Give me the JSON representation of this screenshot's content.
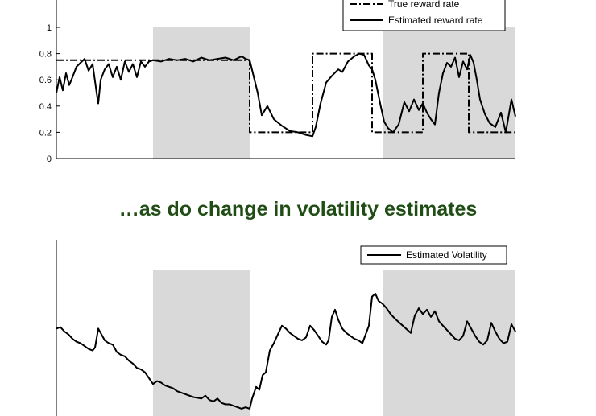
{
  "caption": "…as do change in volatility estimates",
  "colors": {
    "shade": "#d9d9d9",
    "line": "#000000",
    "caption": "#1f4d14"
  },
  "chart_data": [
    {
      "type": "line",
      "title": "",
      "xlabel": "",
      "ylabel": "",
      "ylim": [
        0,
        1
      ],
      "yticks": [
        0,
        0.2,
        0.4,
        0.6,
        0.8,
        1
      ],
      "ytick_labels": [
        "0",
        "0.2",
        "0.4",
        "0.6",
        "0.8",
        "1"
      ],
      "grid": false,
      "legend": "top-right",
      "shaded_x": [
        [
          120,
          240
        ],
        [
          405,
          570
        ]
      ],
      "xlim": [
        0,
        570
      ],
      "series": [
        {
          "name": "True reward rate",
          "style": "dash-dot",
          "x": [
            0,
            240,
            240,
            318,
            318,
            392,
            392,
            455,
            455,
            512,
            512,
            570
          ],
          "y": [
            0.75,
            0.75,
            0.2,
            0.2,
            0.8,
            0.8,
            0.2,
            0.2,
            0.8,
            0.8,
            0.2,
            0.2
          ]
        },
        {
          "name": "Estimated reward rate",
          "style": "solid",
          "x": [
            0,
            4,
            8,
            12,
            16,
            20,
            25,
            30,
            35,
            40,
            45,
            50,
            52,
            55,
            60,
            65,
            70,
            75,
            80,
            85,
            90,
            95,
            100,
            105,
            110,
            115,
            120,
            130,
            140,
            150,
            160,
            170,
            180,
            190,
            200,
            210,
            220,
            230,
            235,
            240,
            250,
            255,
            262,
            270,
            280,
            290,
            300,
            310,
            318,
            322,
            328,
            335,
            342,
            350,
            355,
            362,
            370,
            376,
            382,
            388,
            392,
            396,
            402,
            407,
            412,
            418,
            425,
            432,
            438,
            444,
            450,
            455,
            460,
            465,
            470,
            475,
            480,
            485,
            490,
            495,
            500,
            505,
            510,
            514,
            518,
            522,
            526,
            532,
            538,
            545,
            552,
            558,
            565,
            570
          ],
          "y": [
            0.5,
            0.62,
            0.52,
            0.65,
            0.56,
            0.62,
            0.7,
            0.73,
            0.76,
            0.67,
            0.72,
            0.5,
            0.42,
            0.6,
            0.68,
            0.72,
            0.62,
            0.7,
            0.6,
            0.74,
            0.66,
            0.72,
            0.62,
            0.74,
            0.7,
            0.74,
            0.75,
            0.74,
            0.76,
            0.75,
            0.76,
            0.74,
            0.77,
            0.75,
            0.76,
            0.77,
            0.75,
            0.78,
            0.76,
            0.75,
            0.5,
            0.33,
            0.4,
            0.3,
            0.25,
            0.21,
            0.2,
            0.18,
            0.17,
            0.24,
            0.42,
            0.58,
            0.63,
            0.68,
            0.66,
            0.74,
            0.78,
            0.8,
            0.79,
            0.71,
            0.68,
            0.6,
            0.42,
            0.28,
            0.23,
            0.2,
            0.26,
            0.43,
            0.36,
            0.45,
            0.37,
            0.42,
            0.35,
            0.3,
            0.26,
            0.5,
            0.65,
            0.73,
            0.7,
            0.77,
            0.62,
            0.74,
            0.68,
            0.79,
            0.73,
            0.6,
            0.45,
            0.34,
            0.27,
            0.24,
            0.35,
            0.2,
            0.45,
            0.32
          ]
        }
      ]
    },
    {
      "type": "line",
      "title": "",
      "xlabel": "",
      "ylabel": "",
      "grid": false,
      "legend": "top-right",
      "shaded_x": [
        [
          120,
          240
        ],
        [
          405,
          570
        ]
      ],
      "xlim": [
        0,
        570
      ],
      "ylim": [
        0,
        1
      ],
      "series": [
        {
          "name": "Estimated Volatility",
          "style": "solid",
          "x": [
            0,
            5,
            10,
            15,
            20,
            25,
            30,
            35,
            40,
            45,
            48,
            52,
            55,
            60,
            65,
            70,
            75,
            80,
            85,
            90,
            95,
            100,
            105,
            110,
            115,
            120,
            125,
            130,
            135,
            140,
            145,
            150,
            160,
            170,
            180,
            185,
            190,
            195,
            200,
            205,
            210,
            215,
            220,
            225,
            230,
            235,
            240,
            243,
            248,
            252,
            256,
            260,
            265,
            270,
            275,
            280,
            285,
            290,
            295,
            300,
            305,
            310,
            315,
            320,
            325,
            330,
            335,
            338,
            342,
            346,
            350,
            355,
            360,
            365,
            370,
            375,
            380,
            384,
            388,
            392,
            396,
            400,
            405,
            410,
            415,
            420,
            430,
            440,
            445,
            450,
            455,
            460,
            465,
            470,
            475,
            480,
            485,
            490,
            495,
            500,
            505,
            510,
            515,
            520,
            525,
            530,
            535,
            540,
            545,
            550,
            555,
            560,
            565,
            570
          ],
          "y": [
            0.6,
            0.61,
            0.58,
            0.56,
            0.53,
            0.51,
            0.5,
            0.48,
            0.46,
            0.45,
            0.47,
            0.6,
            0.57,
            0.52,
            0.5,
            0.49,
            0.44,
            0.42,
            0.41,
            0.38,
            0.36,
            0.33,
            0.32,
            0.3,
            0.26,
            0.22,
            0.24,
            0.23,
            0.21,
            0.2,
            0.19,
            0.17,
            0.15,
            0.13,
            0.12,
            0.14,
            0.11,
            0.1,
            0.12,
            0.09,
            0.08,
            0.08,
            0.07,
            0.06,
            0.05,
            0.06,
            0.05,
            0.12,
            0.2,
            0.18,
            0.28,
            0.3,
            0.45,
            0.5,
            0.56,
            0.62,
            0.6,
            0.57,
            0.55,
            0.53,
            0.52,
            0.54,
            0.62,
            0.59,
            0.55,
            0.51,
            0.49,
            0.52,
            0.68,
            0.73,
            0.66,
            0.6,
            0.57,
            0.55,
            0.53,
            0.52,
            0.5,
            0.56,
            0.62,
            0.82,
            0.84,
            0.79,
            0.77,
            0.74,
            0.7,
            0.67,
            0.62,
            0.57,
            0.69,
            0.74,
            0.7,
            0.73,
            0.68,
            0.72,
            0.65,
            0.62,
            0.59,
            0.56,
            0.53,
            0.52,
            0.55,
            0.65,
            0.6,
            0.55,
            0.51,
            0.49,
            0.52,
            0.64,
            0.58,
            0.53,
            0.5,
            0.51,
            0.63,
            0.58
          ]
        }
      ]
    }
  ]
}
